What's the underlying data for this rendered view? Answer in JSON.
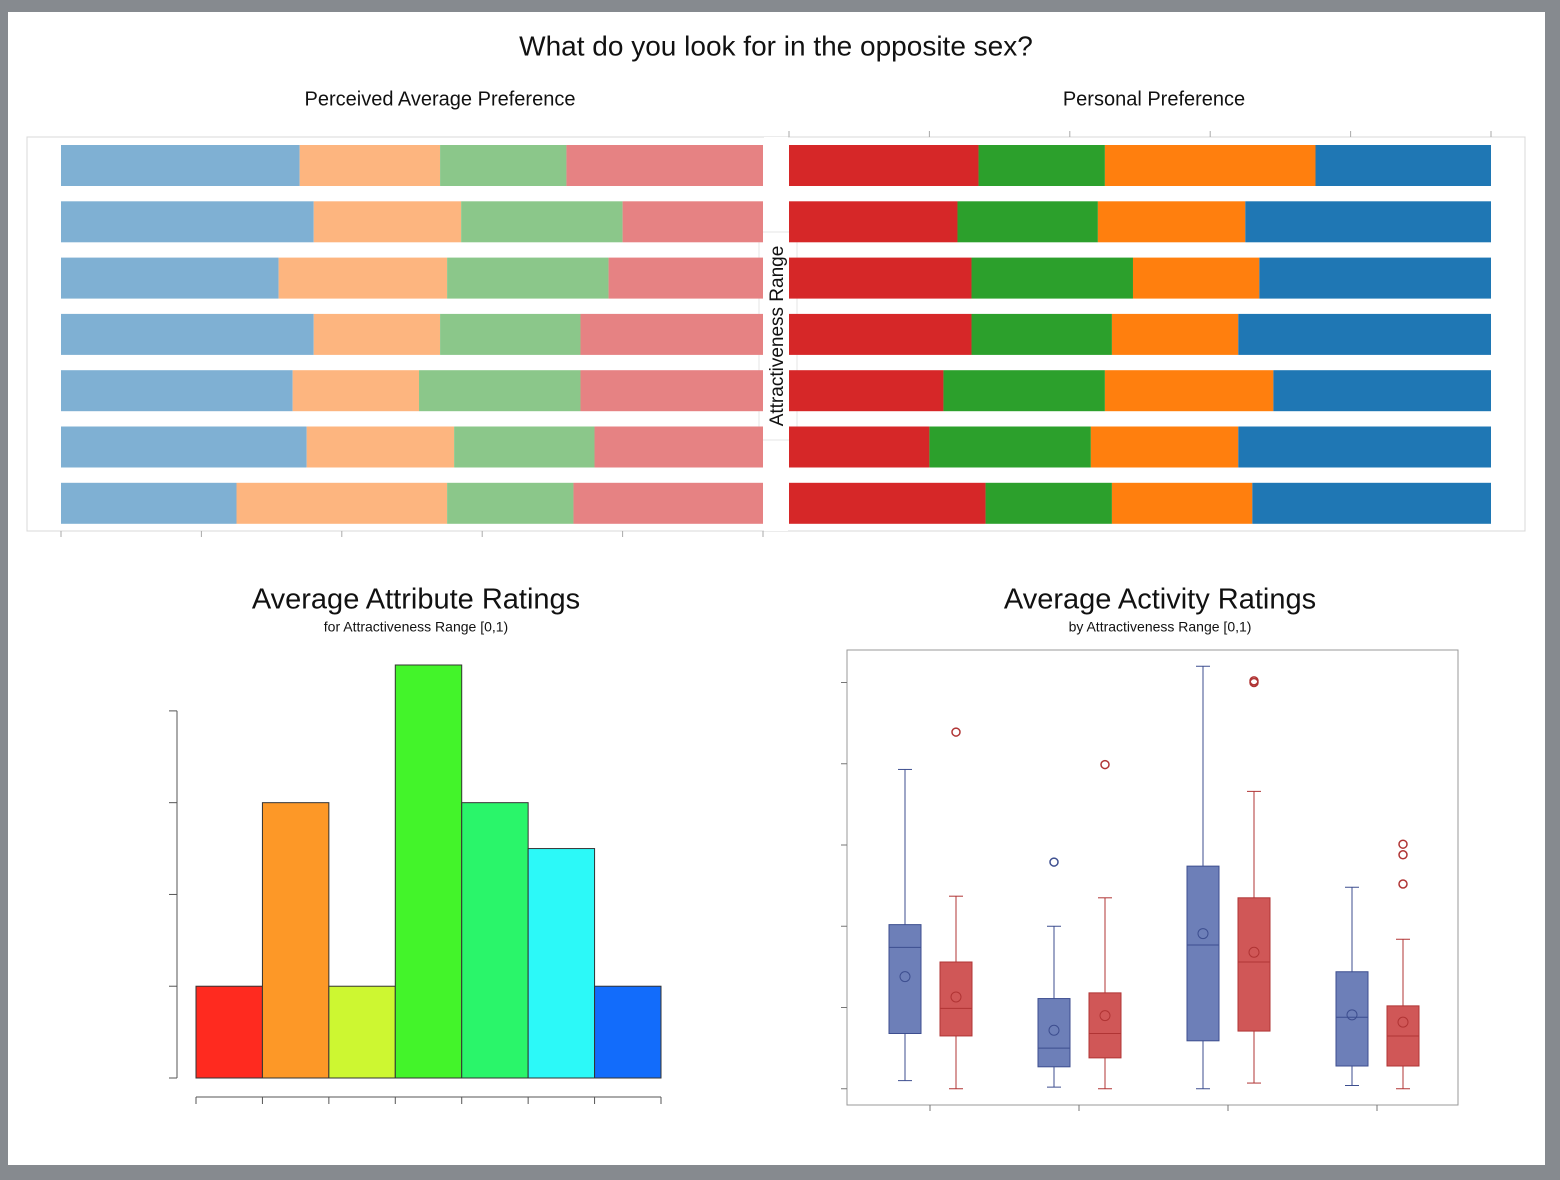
{
  "title": "What do you look for in the opposite sex?",
  "chart_data": [
    {
      "type": "bar",
      "orientation": "horizontal",
      "stacked": true,
      "title": "Perceived Average Preference",
      "ylabel": "Attractiveness Range",
      "xlim": [
        0,
        100
      ],
      "xticks": [
        0,
        20,
        40,
        60,
        80,
        100
      ],
      "series": [
        {
          "color": "#7fb0d3",
          "values": [
            34,
            36,
            31,
            36,
            33,
            35,
            25
          ]
        },
        {
          "color": "#fdb57f",
          "values": [
            20,
            21,
            24,
            18,
            18,
            21,
            30
          ]
        },
        {
          "color": "#8bc78a",
          "values": [
            18,
            23,
            23,
            20,
            23,
            20,
            18
          ]
        },
        {
          "color": "#e68283",
          "values": [
            28,
            20,
            22,
            26,
            26,
            24,
            27
          ]
        }
      ]
    },
    {
      "type": "bar",
      "orientation": "horizontal",
      "stacked": true,
      "title": "Personal Preference",
      "xlim": [
        0,
        100
      ],
      "xticks": [
        0,
        20,
        40,
        60,
        80,
        100
      ],
      "series": [
        {
          "color": "#d62728",
          "values": [
            27,
            24,
            26,
            26,
            22,
            20,
            28
          ]
        },
        {
          "color": "#2ca02c",
          "values": [
            18,
            20,
            23,
            20,
            23,
            23,
            18
          ]
        },
        {
          "color": "#ff7f0e",
          "values": [
            30,
            21,
            18,
            18,
            24,
            21,
            20
          ]
        },
        {
          "color": "#1f77b4",
          "values": [
            25,
            35,
            33,
            36,
            31,
            36,
            34
          ]
        }
      ]
    },
    {
      "type": "histogram",
      "title": "Average Attribute Ratings",
      "subtitle": "for Attractiveness Range [0,1)",
      "bins": [
        0,
        1,
        2,
        3,
        4,
        5,
        6,
        7
      ],
      "counts": [
        1,
        3,
        1,
        4.5,
        3,
        2.5,
        1
      ],
      "colors": [
        "#ff2a1f",
        "#fd9827",
        "#cdf731",
        "#43f42a",
        "#2af56a",
        "#2cf9f8",
        "#126cfb"
      ],
      "xlim": [
        0,
        7
      ],
      "ylim": [
        0,
        4.5
      ],
      "yticks": [
        0,
        1,
        2,
        3,
        4
      ]
    },
    {
      "type": "box",
      "title": "Average Activity Ratings",
      "subtitle": "by Attractiveness Range [0,1)",
      "ylim": [
        -0.2,
        5.4
      ],
      "yticks": [
        0,
        1,
        2,
        3,
        4,
        5
      ],
      "series": [
        {
          "color": "#6d7fb8",
          "boxes": [
            {
              "whislo": 0.1,
              "q1": 0.68,
              "med": 1.74,
              "q3": 2.02,
              "whishi": 3.93,
              "mean": 1.38,
              "fliers": []
            },
            {
              "whislo": 0.02,
              "q1": 0.27,
              "med": 0.5,
              "q3": 1.11,
              "whishi": 2.0,
              "mean": 0.72,
              "fliers": [
                2.79
              ]
            },
            {
              "whislo": 0,
              "q1": 0.59,
              "med": 1.77,
              "q3": 2.74,
              "whishi": 5.2,
              "mean": 1.91,
              "fliers": []
            },
            {
              "whislo": 0.04,
              "q1": 0.28,
              "med": 0.88,
              "q3": 1.44,
              "whishi": 2.48,
              "mean": 0.91,
              "fliers": []
            }
          ]
        },
        {
          "color": "#d05757",
          "boxes": [
            {
              "whislo": 0,
              "q1": 0.65,
              "med": 0.99,
              "q3": 1.56,
              "whishi": 2.37,
              "mean": 1.13,
              "fliers": [
                4.39
              ]
            },
            {
              "whislo": 0,
              "q1": 0.38,
              "med": 0.68,
              "q3": 1.18,
              "whishi": 2.35,
              "mean": 0.9,
              "fliers": [
                3.99
              ]
            },
            {
              "whislo": 0.07,
              "q1": 0.71,
              "med": 1.56,
              "q3": 2.35,
              "whishi": 3.66,
              "mean": 1.68,
              "fliers": [
                5.02,
                5.0
              ]
            },
            {
              "whislo": 0,
              "q1": 0.28,
              "med": 0.65,
              "q3": 1.02,
              "whishi": 1.84,
              "mean": 0.82,
              "fliers": [
                3.01,
                2.88,
                2.52
              ]
            }
          ]
        }
      ]
    }
  ]
}
